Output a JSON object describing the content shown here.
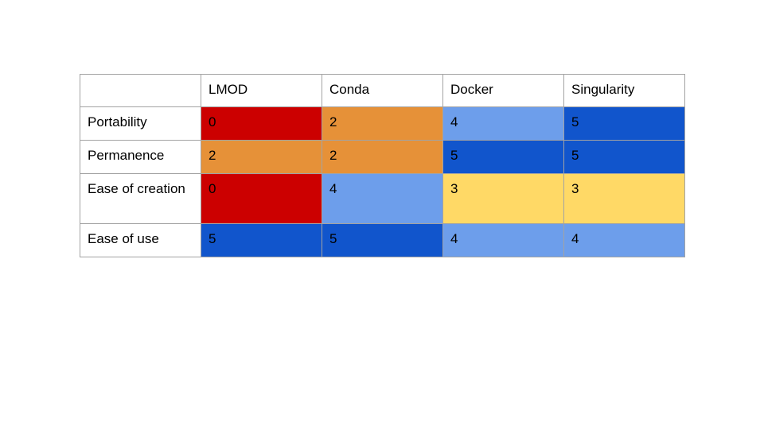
{
  "chart_data": {
    "type": "table",
    "title": "",
    "columns": [
      "",
      "LMOD",
      "Conda",
      "Docker",
      "Singularity"
    ],
    "rows": [
      {
        "label": "Portability",
        "values": [
          0,
          2,
          4,
          5
        ]
      },
      {
        "label": "Permanence",
        "values": [
          2,
          2,
          5,
          5
        ]
      },
      {
        "label": "Ease of creation",
        "values": [
          0,
          4,
          3,
          3
        ]
      },
      {
        "label": "Ease of use",
        "values": [
          5,
          5,
          4,
          4
        ]
      }
    ],
    "score_colors": {
      "0": "#cc0000",
      "2": "#e69138",
      "3": "#ffd966",
      "4": "#6d9eeb",
      "5": "#1155cc"
    },
    "cell_text_color": "#000000",
    "border_color": "#a3a3a3",
    "background_color": "#ffffff",
    "legend_position": "none",
    "grid": true
  }
}
